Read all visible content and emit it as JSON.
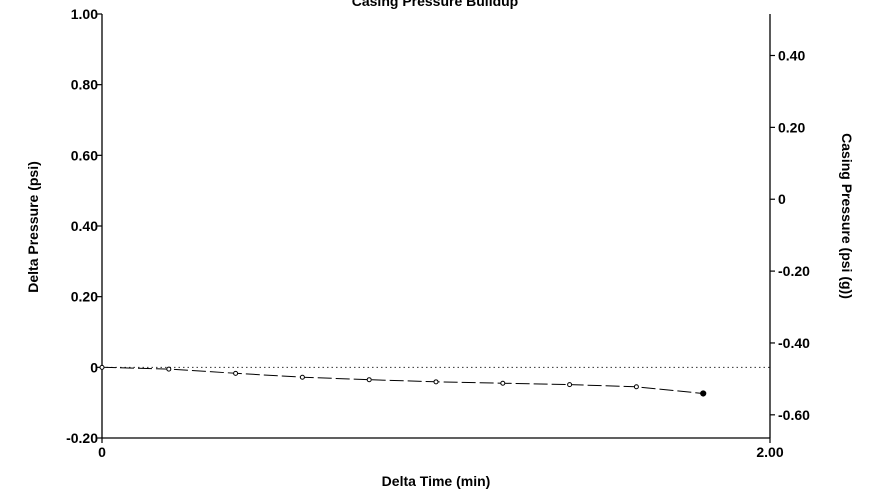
{
  "chart_data": {
    "type": "line",
    "title": "Casing Pressure Buildup",
    "xlabel": "Delta Time (min)",
    "ylabel": "Delta Pressure (psi)",
    "y2label": "Casing Pressure (psi (g))",
    "xlim": [
      0,
      2.0
    ],
    "ylim": [
      -0.2,
      1.0
    ],
    "y2lim": [
      -0.6645,
      0.5155
    ],
    "x_ticks": [
      {
        "value": 0,
        "label": "0"
      },
      {
        "value": 2.0,
        "label": "2.00"
      }
    ],
    "y_ticks": [
      {
        "value": 1.0,
        "label": "1.00"
      },
      {
        "value": 0.8,
        "label": "0.80"
      },
      {
        "value": 0.6,
        "label": "0.60"
      },
      {
        "value": 0.4,
        "label": "0.40"
      },
      {
        "value": 0.2,
        "label": "0.20"
      },
      {
        "value": 0,
        "label": "0"
      },
      {
        "value": -0.2,
        "label": "-0.20"
      }
    ],
    "y2_ticks": [
      {
        "value": 0.4,
        "label": "0.40"
      },
      {
        "value": 0.2,
        "label": "0.20"
      },
      {
        "value": 0,
        "label": "0"
      },
      {
        "value": -0.2,
        "label": "-0.20"
      },
      {
        "value": -0.4,
        "label": "-0.40"
      },
      {
        "value": -0.6,
        "label": "-0.60"
      }
    ],
    "reference_line": {
      "y": 0,
      "style": "dotted"
    },
    "series": [
      {
        "style": "dashed",
        "marker": "open-circle",
        "x": [
          0,
          0.2,
          0.4,
          0.6,
          0.8,
          1.0,
          1.2,
          1.4,
          1.6,
          1.8
        ],
        "y": [
          0,
          -0.005,
          -0.017,
          -0.028,
          -0.035,
          -0.041,
          -0.045,
          -0.049,
          -0.055,
          -0.074
        ]
      }
    ],
    "grid": false
  }
}
